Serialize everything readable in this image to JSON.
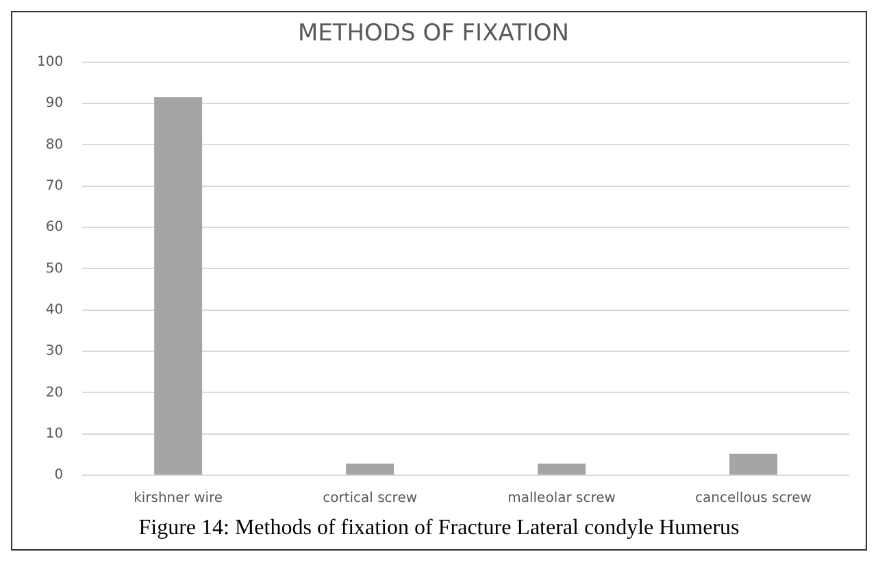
{
  "chart_data": {
    "type": "bar",
    "title": "METHODS OF FIXATION",
    "categories": [
      "kirshner wire",
      "cortical screw",
      "malleolar screw",
      "cancellous screw"
    ],
    "values": [
      91.5,
      2.8,
      2.8,
      5.2
    ],
    "color": "#a5a5a5",
    "ylim": [
      0,
      100
    ],
    "yticks": [
      0,
      10,
      20,
      30,
      40,
      50,
      60,
      70,
      80,
      90,
      100
    ],
    "grid": "y",
    "legend": false,
    "annotations": [
      "Figure 14: Methods of fixation of Fracture Lateral condyle Humerus"
    ]
  }
}
